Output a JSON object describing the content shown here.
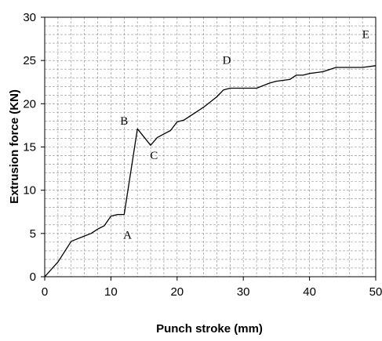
{
  "chart_data": {
    "type": "line",
    "title": "",
    "xlabel": "Punch stroke (mm)",
    "ylabel": "Extrusion force (KN)",
    "xlim": [
      0,
      50
    ],
    "ylim": [
      0,
      30
    ],
    "x_ticks": [
      0,
      10,
      20,
      30,
      40,
      50
    ],
    "y_ticks": [
      0,
      5,
      10,
      15,
      20,
      25,
      30
    ],
    "x_ticks_labels": [
      "0",
      "10",
      "20",
      "30",
      "40",
      "50"
    ],
    "y_ticks_labels": [
      "0",
      "5",
      "10",
      "15",
      "20",
      "25",
      "30"
    ],
    "grid": true,
    "legend": "none",
    "colors": {
      "line": "#000000",
      "grid": "#8c8c8c",
      "frame": "#000000",
      "background": "#ffffff"
    },
    "series": [
      {
        "x": [
          0,
          2,
          4,
          6,
          7,
          8,
          9,
          10,
          11,
          12,
          14,
          16,
          17,
          18,
          19,
          20,
          21,
          22,
          23,
          24,
          25,
          26,
          27,
          28,
          30,
          32,
          34,
          35,
          36,
          37,
          38,
          39,
          40,
          41,
          42,
          44,
          46,
          48,
          50
        ],
        "y": [
          0,
          1.7,
          4.1,
          4.7,
          5.0,
          5.5,
          5.9,
          7.0,
          7.2,
          7.2,
          17.1,
          15.2,
          16.1,
          16.5,
          16.9,
          17.9,
          18.1,
          18.6,
          19.1,
          19.6,
          20.2,
          20.8,
          21.6,
          21.8,
          21.8,
          21.8,
          22.4,
          22.6,
          22.7,
          22.8,
          23.3,
          23.3,
          23.5,
          23.6,
          23.7,
          24.2,
          24.2,
          24.2,
          24.4
        ]
      }
    ],
    "annotations": [
      {
        "text": "A",
        "x": 12.5,
        "y": 4.4
      },
      {
        "text": "B",
        "x": 12.0,
        "y": 17.6
      },
      {
        "text": "C",
        "x": 16.5,
        "y": 13.6
      },
      {
        "text": "D",
        "x": 27.5,
        "y": 24.6
      },
      {
        "text": "E",
        "x": 48.5,
        "y": 27.6
      }
    ]
  }
}
